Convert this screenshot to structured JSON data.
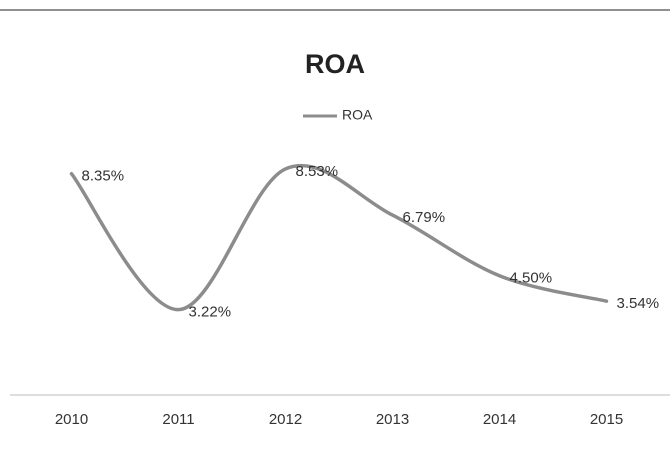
{
  "chart_data": {
    "type": "line",
    "title": "ROA",
    "categories": [
      "2010",
      "2011",
      "2012",
      "2013",
      "2014",
      "2015"
    ],
    "series": [
      {
        "name": "ROA",
        "color": "#8c8c8c",
        "values": [
          8.35,
          3.22,
          8.53,
          6.79,
          4.5,
          3.54
        ],
        "value_labels": [
          "8.35%",
          "3.22%",
          "8.53%",
          "6.79%",
          "4.50%",
          "3.54%"
        ]
      }
    ],
    "ylim": [
      0,
      10
    ],
    "smooth": true,
    "legend": "top"
  }
}
